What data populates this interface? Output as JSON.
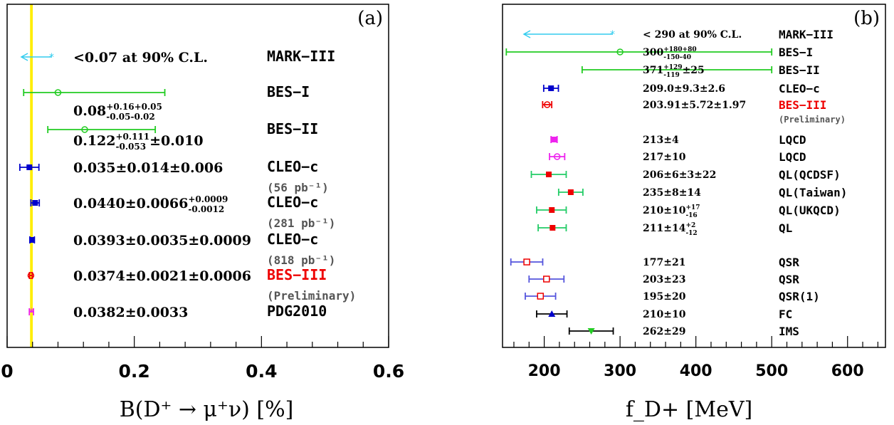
{
  "chart_data": [
    {
      "type": "scatter",
      "panel_label": "(a)",
      "xlabel": "B(D⁺ → μ⁺ν) [%]",
      "xlim": [
        0,
        0.6
      ],
      "ticks": [
        "0",
        "0.2",
        "0.4",
        "0.6"
      ],
      "tick_values": [
        0,
        0.2,
        0.4,
        0.6
      ],
      "band": {
        "x0": 0.0361,
        "x1": 0.0403,
        "color": "#ffee00"
      },
      "points": [
        {
          "label": "<0.07 at 90% C.L.",
          "name": "MARK−III",
          "upper_limit": 0.07,
          "color": "#33ccee",
          "name_color": "#000000"
        },
        {
          "value_html": "0.08",
          "sup": "+0.16+0.05",
          "sub": "-0.05-0.02",
          "value": 0.08,
          "lo": 0.026,
          "hi": 0.248,
          "marker": "open-circle",
          "color": "#22cc22",
          "name": "BES−I",
          "name_color": "#000000"
        },
        {
          "value_html": "0.122",
          "sup": "+0.111",
          "sub": "-0.053",
          "tail": "±0.010",
          "value": 0.122,
          "lo": 0.064,
          "hi": 0.233,
          "marker": "open-circle",
          "color": "#22cc22",
          "name": "BES−II",
          "name_color": "#000000"
        },
        {
          "label": "0.035±0.014±0.006",
          "value": 0.035,
          "lo": 0.02,
          "hi": 0.05,
          "marker": "square",
          "color": "#0000cc",
          "name": "CLEO−c",
          "note": "(56 pb⁻¹)",
          "name_color": "#000000"
        },
        {
          "value_html": "0.0440±0.0066",
          "sup": "+0.0009",
          "sub": "-0.0012",
          "value": 0.044,
          "lo": 0.0374,
          "hi": 0.0506,
          "marker": "square",
          "color": "#0000cc",
          "name": "CLEO−c",
          "note": "(281 pb⁻¹)",
          "name_color": "#000000"
        },
        {
          "label": "0.0393±0.0035±0.0009",
          "value": 0.0393,
          "lo": 0.0357,
          "hi": 0.0429,
          "marker": "square",
          "color": "#0000cc",
          "name": "CLEO−c",
          "note": "(818 pb⁻¹)",
          "name_color": "#000000"
        },
        {
          "label": "0.0374±0.0021±0.0006",
          "value": 0.0374,
          "lo": 0.0352,
          "hi": 0.0396,
          "marker": "open-circle",
          "color": "#ee0000",
          "name": "BES−III",
          "note": "(Preliminary)",
          "name_color": "#ee0000"
        },
        {
          "label": "0.0382±0.0033",
          "value": 0.0382,
          "lo": 0.0349,
          "hi": 0.0415,
          "marker": "star",
          "color": "#ee22ee",
          "name": "PDG2010",
          "name_color": "#000000"
        }
      ]
    },
    {
      "type": "scatter",
      "panel_label": "(b)",
      "xlabel": "f_D+ [MeV]",
      "xlim": [
        145,
        650
      ],
      "ticks": [
        "200",
        "300",
        "400",
        "500",
        "600"
      ],
      "tick_values": [
        200,
        300,
        400,
        500,
        600
      ],
      "points": [
        {
          "label": "< 290 at 90% C.L.",
          "name": "MARK−III",
          "upper_limit": 290,
          "color": "#33ccee",
          "name_color": "#000000"
        },
        {
          "value_html": "300",
          "sup": "+180+80",
          "sub": "-150-40",
          "value": 300,
          "lo": 150,
          "hi": 500,
          "marker": "open-circle",
          "color": "#22cc22",
          "name": "BES−I",
          "name_color": "#000000"
        },
        {
          "value_html": "371",
          "sup": "+129",
          "sub": "-119",
          "tail": "±25",
          "value": 371,
          "lo": 250,
          "hi": 500,
          "marker": "none",
          "color": "#22cc22",
          "name": "BES−II",
          "name_color": "#000000"
        },
        {
          "label": "209.0±9.3±2.6",
          "value": 209.0,
          "lo": 199.3,
          "hi": 218.7,
          "marker": "square",
          "color": "#0000cc",
          "name": "CLEO−c",
          "name_color": "#000000"
        },
        {
          "label": "203.91±5.72±1.97",
          "value": 203.91,
          "lo": 197.9,
          "hi": 209.9,
          "marker": "open-circle",
          "color": "#ee0000",
          "name": "BES−III",
          "note": "(Preliminary)",
          "name_color": "#ee0000"
        },
        {
          "label": "213±4",
          "value": 213,
          "lo": 209,
          "hi": 217,
          "marker": "square",
          "color": "#ee22ee",
          "name": "LQCD",
          "name_color": "#000000"
        },
        {
          "label": "217±10",
          "value": 217,
          "lo": 207,
          "hi": 227,
          "marker": "open-circle",
          "color": "#ee22ee",
          "name": "LQCD",
          "name_color": "#000000"
        },
        {
          "label": "206±6±3±22",
          "value": 206,
          "lo": 183,
          "hi": 229,
          "marker": "square",
          "color": "#ee0000",
          "bar_color": "#22cc66",
          "name": "QL(QCDSF)",
          "name_color": "#000000"
        },
        {
          "label": "235±8±14",
          "value": 235,
          "lo": 219,
          "hi": 251,
          "marker": "square",
          "color": "#ee0000",
          "bar_color": "#22cc66",
          "name": "QL(Taiwan)",
          "name_color": "#000000"
        },
        {
          "value_html": "210±10",
          "sup": "+17",
          "sub": "-16",
          "value": 210,
          "lo": 190,
          "hi": 229,
          "marker": "square",
          "color": "#ee0000",
          "bar_color": "#22cc66",
          "name": "QL(UKQCD)",
          "name_color": "#000000"
        },
        {
          "value_html": "211±14",
          "sup": "+2",
          "sub": "-12",
          "value": 211,
          "lo": 192,
          "hi": 229,
          "marker": "square",
          "color": "#ee0000",
          "bar_color": "#22cc66",
          "name": "QL",
          "name_color": "#000000"
        },
        {
          "label": "177±21",
          "value": 177,
          "lo": 156,
          "hi": 198,
          "marker": "open-square",
          "color": "#ee0000",
          "bar_color": "#5555dd",
          "name": "QSR",
          "name_color": "#000000"
        },
        {
          "label": "203±23",
          "value": 203,
          "lo": 180,
          "hi": 226,
          "marker": "open-square",
          "color": "#ee0000",
          "bar_color": "#5555dd",
          "name": "QSR",
          "name_color": "#000000"
        },
        {
          "label": "195±20",
          "value": 195,
          "lo": 175,
          "hi": 215,
          "marker": "open-square",
          "color": "#ee0000",
          "bar_color": "#5555dd",
          "name": "QSR(1)",
          "name_color": "#000000"
        },
        {
          "label": "210±10",
          "value": 210,
          "lo": 190,
          "hi": 230,
          "marker": "triangle-up",
          "color": "#0000cc",
          "bar_color": "#000000",
          "name": "FC",
          "name_color": "#000000"
        },
        {
          "label": "262±29",
          "value": 262,
          "lo": 233,
          "hi": 291,
          "marker": "triangle-down",
          "color": "#22cc22",
          "bar_color": "#000000",
          "name": "IMS",
          "name_color": "#000000"
        }
      ]
    }
  ]
}
